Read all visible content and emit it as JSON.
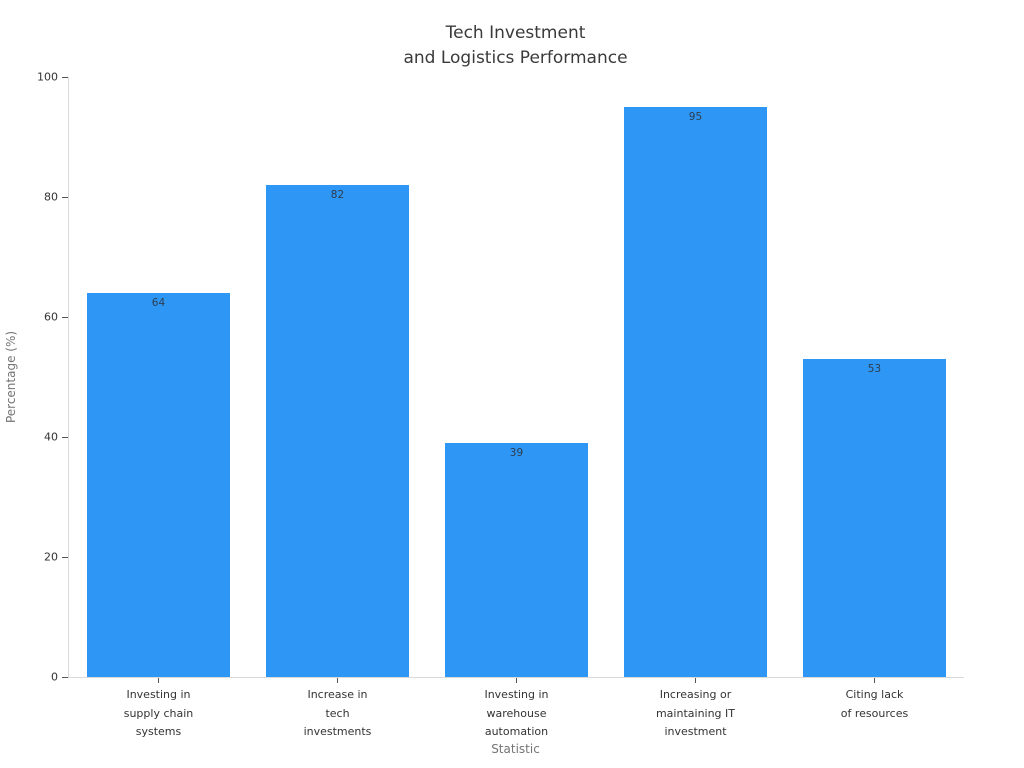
{
  "chart_data": {
    "type": "bar",
    "title": "Tech Investment\nand Logistics Performance",
    "xlabel": "Statistic",
    "ylabel": "Percentage (%)",
    "categories": [
      "Investing in\nsupply chain\nsystems",
      "Increase in\ntech\ninvestments",
      "Investing in\nwarehouse\nautomation",
      "Increasing or\nmaintaining IT\ninvestment",
      "Citing lack\nof resources"
    ],
    "values": [
      64,
      82,
      39,
      95,
      53
    ],
    "value_labels": [
      "64",
      "82",
      "39",
      "95",
      "53"
    ],
    "y_ticks": [
      0,
      20,
      40,
      60,
      80,
      100
    ],
    "ylim": [
      0,
      100
    ],
    "grid": false,
    "legend": null,
    "bar_width_fraction": 0.8,
    "colors": {
      "bar": "#2E96F5",
      "value_label": "#2d3e50",
      "tick_label": "#333333",
      "axis_label": "#757575",
      "title": "#3a3a3a",
      "spine": "#d9d9d9",
      "background": "#ffffff"
    }
  }
}
